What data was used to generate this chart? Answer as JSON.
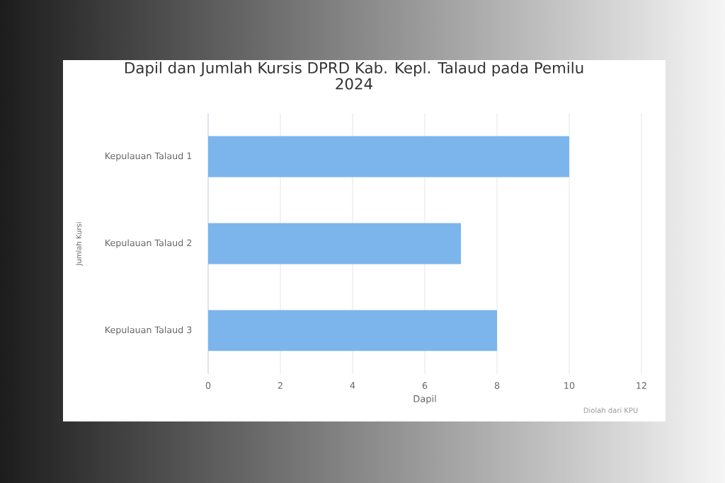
{
  "chart_data": {
    "type": "bar",
    "orientation": "horizontal",
    "title": "Dapil dan Jumlah Kursis DPRD Kab. Kepl. Talaud pada Pemilu 2024",
    "xlabel": "Dapil",
    "ylabel": "Jumlah Kursi",
    "categories": [
      "Kepulauan Talaud 1",
      "Kepulauan Talaud 2",
      "Kepulauan Talaud 3"
    ],
    "values": [
      10,
      7,
      8
    ],
    "color": "#7cb5ec",
    "xlim": [
      0,
      12
    ],
    "xticks": [
      0,
      2,
      4,
      6,
      8,
      10,
      12
    ],
    "grid": "x",
    "annotations": [
      "Diolah dari KPU"
    ]
  }
}
